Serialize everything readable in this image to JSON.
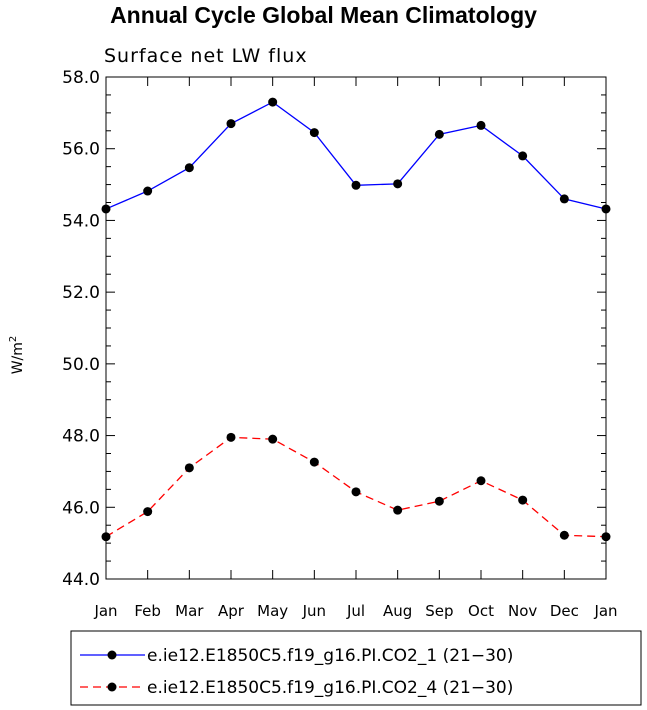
{
  "chart_data": {
    "type": "line",
    "title": "Annual Cycle Global Mean Climatology",
    "subtitle": "Surface net LW flux",
    "ylabel_main": "W/m",
    "ylabel_sup": "2",
    "ylim": [
      44.0,
      58.0
    ],
    "yticks": [
      "44.0",
      "46.0",
      "48.0",
      "50.0",
      "52.0",
      "54.0",
      "56.0",
      "58.0"
    ],
    "categories": [
      "Jan",
      "Feb",
      "Mar",
      "Apr",
      "May",
      "Jun",
      "Jul",
      "Aug",
      "Sep",
      "Oct",
      "Nov",
      "Dec",
      "Jan"
    ],
    "grid": false,
    "legend_position": "bottom",
    "series": [
      {
        "name": "e.ie12.E1850C5.f19_g16.PI.CO2_1 (21−30)",
        "color": "#0000ff",
        "dash": "solid",
        "values": [
          54.32,
          54.82,
          55.47,
          56.7,
          57.3,
          56.45,
          54.98,
          55.02,
          56.4,
          56.65,
          55.8,
          54.6,
          54.32
        ]
      },
      {
        "name": "e.ie12.E1850C5.f19_g16.PI.CO2_4 (21−30)",
        "color": "#ff0000",
        "dash": "dashed",
        "values": [
          45.18,
          45.88,
          47.1,
          47.95,
          47.9,
          47.26,
          46.43,
          45.92,
          46.17,
          46.74,
          46.2,
          45.22,
          45.18
        ]
      }
    ]
  }
}
